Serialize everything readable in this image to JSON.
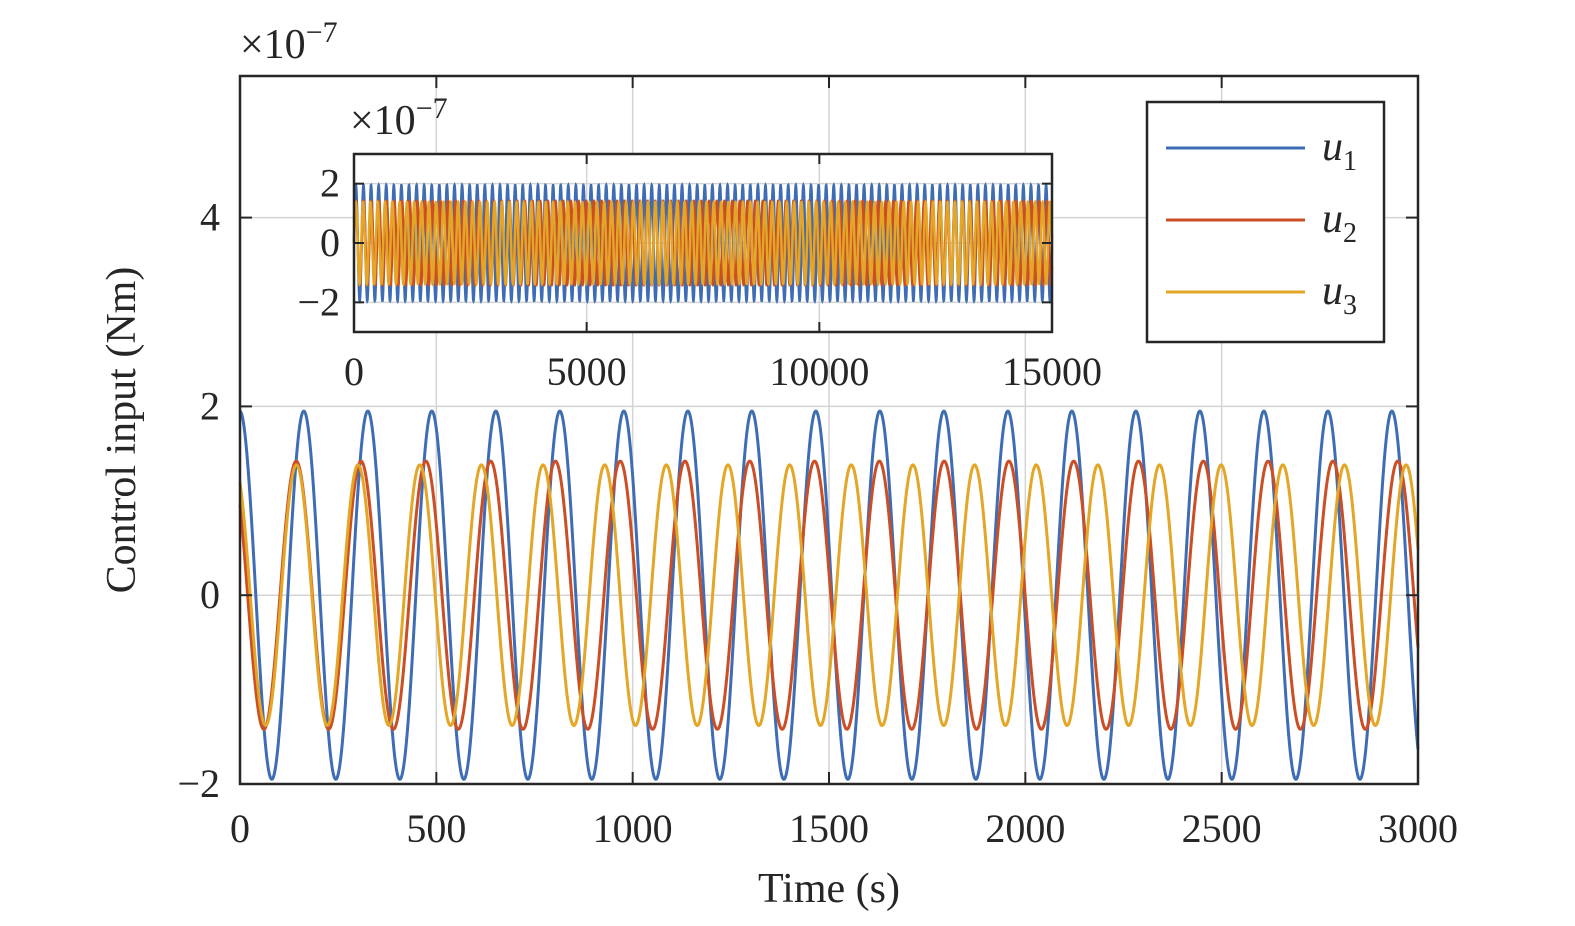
{
  "chart_data": [
    {
      "type": "line",
      "xlabel": "Time (s)",
      "ylabel": "Control input (Nm)",
      "exponent_label": "×10",
      "exponent_power": "−7",
      "xlim": [
        0,
        3000
      ],
      "ylim": [
        -2,
        5.5
      ],
      "xticks": [
        0,
        500,
        1000,
        1500,
        2000,
        2500,
        3000
      ],
      "xtick_labels": [
        "0",
        "500",
        "1000",
        "1500",
        "2000",
        "2500",
        "3000"
      ],
      "yticks": [
        -2,
        0,
        2,
        4
      ],
      "ytick_labels": [
        "−2",
        "0",
        "2",
        "4"
      ],
      "grid": true,
      "legend_position": "top-right",
      "series": [
        {
          "name": "u",
          "subscript": "1",
          "color": "#3E6DB5",
          "amplitude": 1.95,
          "period": 163,
          "phase": 1.59,
          "offset": 0
        },
        {
          "name": "u",
          "subscript": "2",
          "color": "#CB4E25",
          "amplitude": 1.42,
          "period": 165,
          "phase": 2.4,
          "offset": 0
        },
        {
          "name": "u",
          "subscript": "3",
          "color": "#E4A626",
          "amplitude": 1.38,
          "period": 157,
          "phase": 2.1,
          "offset": 0
        }
      ]
    },
    {
      "type": "line",
      "position": "inset",
      "exponent_label": "×10",
      "exponent_power": "−7",
      "xlim": [
        0,
        15000
      ],
      "ylim": [
        -3,
        3
      ],
      "xticks": [
        0,
        5000,
        10000,
        15000
      ],
      "xtick_labels": [
        "0",
        "5000",
        "10000",
        "15000"
      ],
      "yticks": [
        -2,
        0,
        2
      ],
      "ytick_labels": [
        "−2",
        "0",
        "2"
      ],
      "grid": true,
      "series": [
        {
          "name": "u1",
          "color": "#3E6DB5",
          "amplitude": 1.95,
          "period": 163
        },
        {
          "name": "u2",
          "color": "#CB4E25",
          "amplitude": 1.42,
          "period": 165
        },
        {
          "name": "u3",
          "color": "#E4A626",
          "amplitude": 1.38,
          "period": 157
        }
      ]
    }
  ]
}
